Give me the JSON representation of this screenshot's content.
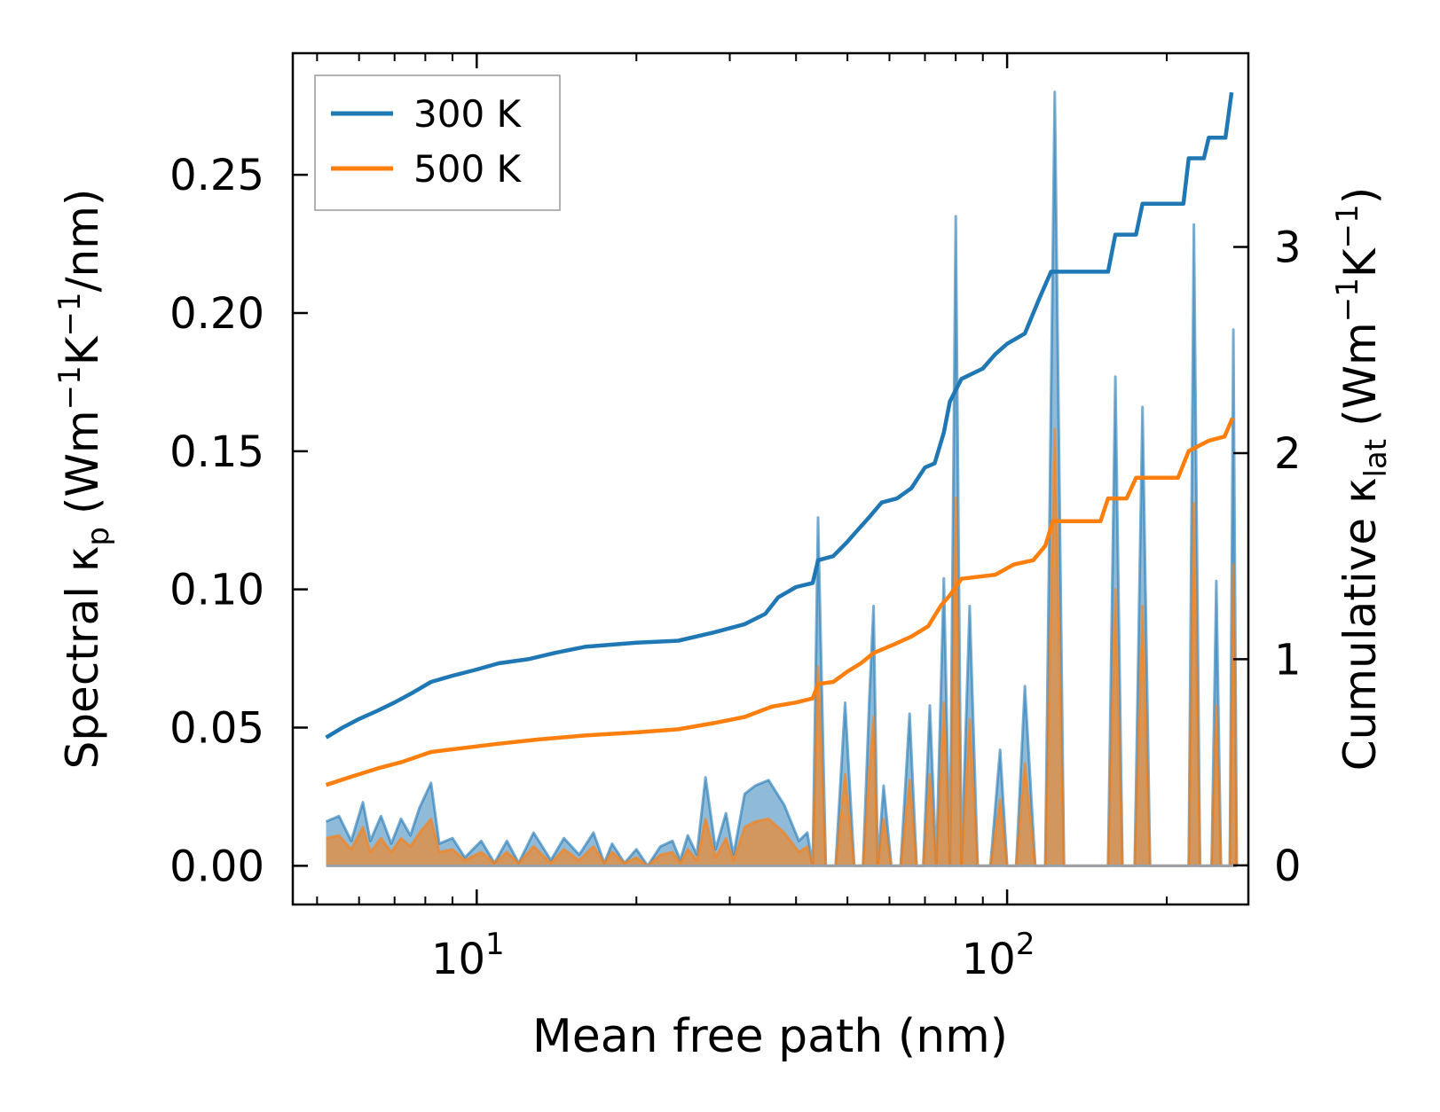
{
  "chart_data": {
    "type": "line",
    "x_scale": "log",
    "xlabel": "Mean free path (nm)",
    "ylabel_left": "Spectral κ",
    "ylabel_left_sub": "p",
    "ylabel_left_units": "(Wm",
    "ylabel_right": "Cumulative κ",
    "ylabel_right_sub": "lat",
    "ylabel_right_units": "(Wm",
    "xlim": [
      4.5,
      285
    ],
    "ylim_left": [
      -0.014,
      0.294
    ],
    "ylim_right": [
      -0.19,
      3.94
    ],
    "x_ticks": [
      10,
      100
    ],
    "x_tick_labels": [
      {
        "base": "10",
        "exp": "1"
      },
      {
        "base": "10",
        "exp": "2"
      }
    ],
    "yleft_ticks": [
      0.0,
      0.05,
      0.1,
      0.15,
      0.2,
      0.25
    ],
    "yleft_tick_labels": [
      "0.00",
      "0.05",
      "0.10",
      "0.15",
      "0.20",
      "0.25"
    ],
    "yright_ticks": [
      0,
      1,
      2,
      3
    ],
    "yright_tick_labels": [
      "0",
      "1",
      "2",
      "3"
    ],
    "legend": {
      "position": "top-left",
      "entries": [
        "300 K",
        "500 K"
      ]
    },
    "colors": {
      "300 K": "#1f77b4",
      "500 K": "#ff7f0e"
    },
    "cumulative_series": [
      {
        "name": "300 K",
        "axis": "right",
        "points": [
          [
            5.2,
            0.62
          ],
          [
            5.6,
            0.67
          ],
          [
            6.0,
            0.71
          ],
          [
            6.5,
            0.75
          ],
          [
            7.0,
            0.79
          ],
          [
            7.6,
            0.84
          ],
          [
            8.2,
            0.89
          ],
          [
            9.0,
            0.92
          ],
          [
            10.0,
            0.95
          ],
          [
            11.0,
            0.98
          ],
          [
            12.5,
            1.0
          ],
          [
            14.0,
            1.03
          ],
          [
            16.0,
            1.06
          ],
          [
            20.0,
            1.08
          ],
          [
            24.0,
            1.09
          ],
          [
            28.0,
            1.13
          ],
          [
            32.0,
            1.17
          ],
          [
            35.0,
            1.22
          ],
          [
            37.0,
            1.3
          ],
          [
            40.0,
            1.35
          ],
          [
            43.0,
            1.37
          ],
          [
            44.0,
            1.48
          ],
          [
            47.0,
            1.5
          ],
          [
            50.0,
            1.57
          ],
          [
            52.0,
            1.62
          ],
          [
            55.0,
            1.69
          ],
          [
            58.0,
            1.76
          ],
          [
            62.0,
            1.78
          ],
          [
            66.0,
            1.83
          ],
          [
            70.0,
            1.93
          ],
          [
            73.0,
            1.95
          ],
          [
            76.0,
            2.1
          ],
          [
            78.0,
            2.25
          ],
          [
            82.0,
            2.36
          ],
          [
            90.0,
            2.41
          ],
          [
            95.0,
            2.48
          ],
          [
            100.0,
            2.53
          ],
          [
            108.0,
            2.58
          ],
          [
            115.0,
            2.75
          ],
          [
            121.0,
            2.88
          ],
          [
            135.0,
            2.88
          ],
          [
            155.0,
            2.88
          ],
          [
            160.0,
            3.06
          ],
          [
            175.0,
            3.06
          ],
          [
            180.0,
            3.21
          ],
          [
            200.0,
            3.21
          ],
          [
            215.0,
            3.21
          ],
          [
            220.0,
            3.43
          ],
          [
            235.0,
            3.43
          ],
          [
            240.0,
            3.53
          ],
          [
            258.0,
            3.53
          ],
          [
            265.0,
            3.75
          ]
        ]
      },
      {
        "name": "500 K",
        "axis": "right",
        "points": [
          [
            5.2,
            0.39
          ],
          [
            5.8,
            0.43
          ],
          [
            6.5,
            0.47
          ],
          [
            7.2,
            0.5
          ],
          [
            8.2,
            0.55
          ],
          [
            9.5,
            0.57
          ],
          [
            11.0,
            0.59
          ],
          [
            13.0,
            0.61
          ],
          [
            16.0,
            0.63
          ],
          [
            20.0,
            0.645
          ],
          [
            24.0,
            0.66
          ],
          [
            28.0,
            0.69
          ],
          [
            32.0,
            0.72
          ],
          [
            36.0,
            0.77
          ],
          [
            40.0,
            0.79
          ],
          [
            43.0,
            0.81
          ],
          [
            44.0,
            0.88
          ],
          [
            47.0,
            0.89
          ],
          [
            50.0,
            0.94
          ],
          [
            53.0,
            0.98
          ],
          [
            56.0,
            1.03
          ],
          [
            61.0,
            1.07
          ],
          [
            66.0,
            1.11
          ],
          [
            71.0,
            1.16
          ],
          [
            75.0,
            1.26
          ],
          [
            78.0,
            1.31
          ],
          [
            82.0,
            1.39
          ],
          [
            95.0,
            1.41
          ],
          [
            103.0,
            1.46
          ],
          [
            112.0,
            1.48
          ],
          [
            118.0,
            1.55
          ],
          [
            122.0,
            1.67
          ],
          [
            150.0,
            1.67
          ],
          [
            155.0,
            1.78
          ],
          [
            168.0,
            1.78
          ],
          [
            175.0,
            1.88
          ],
          [
            210.0,
            1.88
          ],
          [
            220.0,
            2.01
          ],
          [
            240.0,
            2.06
          ],
          [
            257.0,
            2.08
          ],
          [
            266.0,
            2.17
          ]
        ]
      }
    ],
    "spectral_series": [
      {
        "name": "300 K",
        "axis": "left",
        "points": [
          [
            5.2,
            0.016
          ],
          [
            5.5,
            0.018
          ],
          [
            5.8,
            0.009
          ],
          [
            6.1,
            0.023
          ],
          [
            6.3,
            0.009
          ],
          [
            6.6,
            0.018
          ],
          [
            6.9,
            0.008
          ],
          [
            7.2,
            0.017
          ],
          [
            7.5,
            0.011
          ],
          [
            7.8,
            0.021
          ],
          [
            8.2,
            0.03
          ],
          [
            8.5,
            0.008
          ],
          [
            9.0,
            0.01
          ],
          [
            9.5,
            0.003
          ],
          [
            10.2,
            0.009
          ],
          [
            10.8,
            0.001
          ],
          [
            11.4,
            0.009
          ],
          [
            12.0,
            0.001
          ],
          [
            12.8,
            0.012
          ],
          [
            13.8,
            0.002
          ],
          [
            14.6,
            0.01
          ],
          [
            15.6,
            0.004
          ],
          [
            16.6,
            0.012
          ],
          [
            17.4,
            0.001
          ],
          [
            18.0,
            0.008
          ],
          [
            19.0,
            0.001
          ],
          [
            20.0,
            0.006
          ],
          [
            21.0,
            0.0
          ],
          [
            22.2,
            0.007
          ],
          [
            23.4,
            0.009
          ],
          [
            24.2,
            0.002
          ],
          [
            25.0,
            0.011
          ],
          [
            26.0,
            0.004
          ],
          [
            27.0,
            0.032
          ],
          [
            28.2,
            0.006
          ],
          [
            29.5,
            0.019
          ],
          [
            30.5,
            0.004
          ],
          [
            32.0,
            0.026
          ],
          [
            33.5,
            0.029
          ],
          [
            35.5,
            0.031
          ],
          [
            38.0,
            0.022
          ],
          [
            40.5,
            0.009
          ],
          [
            42.0,
            0.012
          ],
          [
            43.0,
            0.0
          ],
          [
            44.0,
            0.126
          ],
          [
            45.5,
            0.0
          ],
          [
            47.5,
            0.0
          ],
          [
            49.5,
            0.059
          ],
          [
            51.5,
            0.0
          ],
          [
            53.5,
            0.0
          ],
          [
            55.0,
            0.061
          ],
          [
            56.0,
            0.094
          ],
          [
            57.0,
            0.0
          ],
          [
            58.5,
            0.029
          ],
          [
            60.5,
            0.0
          ],
          [
            63.0,
            0.0
          ],
          [
            65.5,
            0.055
          ],
          [
            67.5,
            0.0
          ],
          [
            69.5,
            0.0
          ],
          [
            71.5,
            0.058
          ],
          [
            73.5,
            0.0
          ],
          [
            76.0,
            0.104
          ],
          [
            78.0,
            0.0
          ],
          [
            80.0,
            0.235
          ],
          [
            82.0,
            0.0
          ],
          [
            85.0,
            0.094
          ],
          [
            88.0,
            0.0
          ],
          [
            93.0,
            0.0
          ],
          [
            97.0,
            0.042
          ],
          [
            100.0,
            0.0
          ],
          [
            104.0,
            0.0
          ],
          [
            108.0,
            0.065
          ],
          [
            113.0,
            0.0
          ],
          [
            118.0,
            0.0
          ],
          [
            123.0,
            0.28
          ],
          [
            128.0,
            0.0
          ],
          [
            150.0,
            0.0
          ],
          [
            155.0,
            0.0
          ],
          [
            160.0,
            0.177
          ],
          [
            165.0,
            0.0
          ],
          [
            174.0,
            0.0
          ],
          [
            180.0,
            0.166
          ],
          [
            186.0,
            0.0
          ],
          [
            215.0,
            0.0
          ],
          [
            220.0,
            0.0
          ],
          [
            225.0,
            0.232
          ],
          [
            231.0,
            0.0
          ],
          [
            243.0,
            0.0
          ],
          [
            248.0,
            0.103
          ],
          [
            253.0,
            0.0
          ],
          [
            263.0,
            0.0
          ],
          [
            267.0,
            0.194
          ],
          [
            271.0,
            0.0
          ]
        ]
      },
      {
        "name": "500 K",
        "axis": "left",
        "points": [
          [
            5.2,
            0.01
          ],
          [
            5.5,
            0.011
          ],
          [
            5.8,
            0.006
          ],
          [
            6.1,
            0.014
          ],
          [
            6.3,
            0.005
          ],
          [
            6.6,
            0.01
          ],
          [
            6.9,
            0.005
          ],
          [
            7.2,
            0.01
          ],
          [
            7.5,
            0.007
          ],
          [
            7.8,
            0.012
          ],
          [
            8.2,
            0.017
          ],
          [
            8.5,
            0.005
          ],
          [
            9.0,
            0.006
          ],
          [
            9.5,
            0.002
          ],
          [
            10.2,
            0.005
          ],
          [
            10.8,
            0.001
          ],
          [
            11.4,
            0.005
          ],
          [
            12.0,
            0.001
          ],
          [
            12.8,
            0.007
          ],
          [
            13.8,
            0.001
          ],
          [
            14.6,
            0.006
          ],
          [
            15.6,
            0.002
          ],
          [
            16.6,
            0.007
          ],
          [
            17.4,
            0.001
          ],
          [
            18.0,
            0.005
          ],
          [
            19.0,
            0.001
          ],
          [
            20.0,
            0.003
          ],
          [
            21.0,
            0.0
          ],
          [
            22.2,
            0.004
          ],
          [
            23.4,
            0.005
          ],
          [
            24.2,
            0.001
          ],
          [
            25.0,
            0.006
          ],
          [
            26.0,
            0.002
          ],
          [
            27.0,
            0.017
          ],
          [
            28.2,
            0.003
          ],
          [
            29.5,
            0.01
          ],
          [
            30.5,
            0.002
          ],
          [
            32.0,
            0.014
          ],
          [
            33.5,
            0.016
          ],
          [
            35.5,
            0.017
          ],
          [
            38.0,
            0.012
          ],
          [
            40.5,
            0.005
          ],
          [
            42.0,
            0.007
          ],
          [
            43.0,
            0.0
          ],
          [
            44.0,
            0.072
          ],
          [
            45.5,
            0.0
          ],
          [
            47.5,
            0.0
          ],
          [
            49.5,
            0.033
          ],
          [
            51.5,
            0.0
          ],
          [
            53.5,
            0.0
          ],
          [
            55.0,
            0.035
          ],
          [
            56.0,
            0.054
          ],
          [
            57.0,
            0.0
          ],
          [
            58.5,
            0.017
          ],
          [
            60.5,
            0.0
          ],
          [
            63.0,
            0.0
          ],
          [
            65.5,
            0.031
          ],
          [
            67.5,
            0.0
          ],
          [
            69.5,
            0.0
          ],
          [
            71.5,
            0.033
          ],
          [
            73.5,
            0.0
          ],
          [
            76.0,
            0.059
          ],
          [
            78.0,
            0.0
          ],
          [
            80.0,
            0.133
          ],
          [
            82.0,
            0.0
          ],
          [
            85.0,
            0.053
          ],
          [
            88.0,
            0.0
          ],
          [
            93.0,
            0.0
          ],
          [
            97.0,
            0.024
          ],
          [
            100.0,
            0.0
          ],
          [
            104.0,
            0.0
          ],
          [
            108.0,
            0.037
          ],
          [
            113.0,
            0.0
          ],
          [
            118.0,
            0.0
          ],
          [
            123.0,
            0.158
          ],
          [
            128.0,
            0.0
          ],
          [
            150.0,
            0.0
          ],
          [
            155.0,
            0.0
          ],
          [
            160.0,
            0.1
          ],
          [
            165.0,
            0.0
          ],
          [
            174.0,
            0.0
          ],
          [
            180.0,
            0.094
          ],
          [
            186.0,
            0.0
          ],
          [
            215.0,
            0.0
          ],
          [
            220.0,
            0.0
          ],
          [
            225.0,
            0.131
          ],
          [
            231.0,
            0.0
          ],
          [
            243.0,
            0.0
          ],
          [
            248.0,
            0.058
          ],
          [
            253.0,
            0.0
          ],
          [
            263.0,
            0.0
          ],
          [
            267.0,
            0.109
          ],
          [
            271.0,
            0.0
          ]
        ]
      }
    ]
  }
}
